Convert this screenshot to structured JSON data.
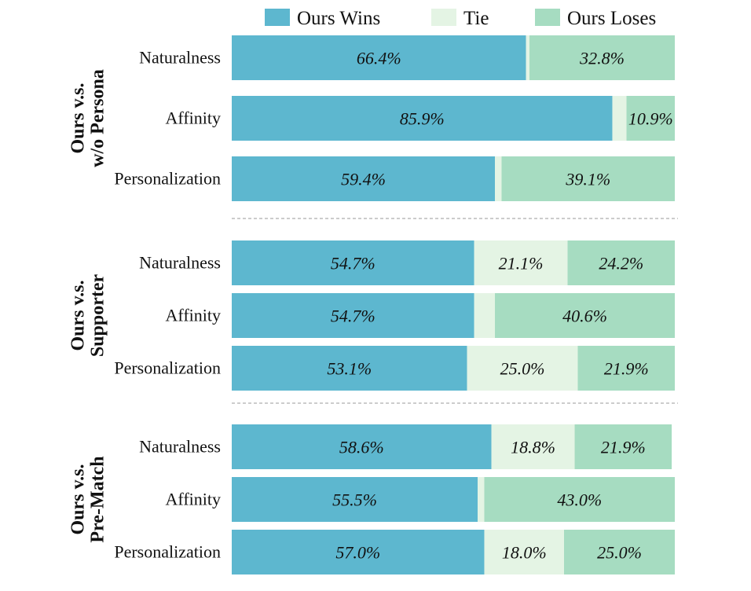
{
  "chart_data": {
    "type": "bar",
    "orientation": "horizontal",
    "stacked": true,
    "legend_position": "top",
    "xlim": [
      0,
      100
    ],
    "series": [
      {
        "name": "Ours Wins",
        "color": "#5db7cf"
      },
      {
        "name": "Tie",
        "color": "#e4f4e4"
      },
      {
        "name": "Ours Loses",
        "color": "#a6dcc1"
      }
    ],
    "groups": [
      {
        "label_lines": [
          "Ours v.s.",
          "w/o Persona"
        ],
        "rows": [
          {
            "category": "Naturalness",
            "values": [
              66.4,
              0.8,
              32.8
            ],
            "labels": [
              "66.4%",
              "",
              "32.8%"
            ]
          },
          {
            "category": "Affinity",
            "values": [
              85.9,
              3.2,
              10.9
            ],
            "labels": [
              "85.9%",
              "",
              "10.9%"
            ]
          },
          {
            "category": "Personalization",
            "values": [
              59.4,
              1.5,
              39.1
            ],
            "labels": [
              "59.4%",
              "",
              "39.1%"
            ]
          }
        ]
      },
      {
        "label_lines": [
          "Ours v.s.",
          "Supporter"
        ],
        "rows": [
          {
            "category": "Naturalness",
            "values": [
              54.7,
              21.1,
              24.2
            ],
            "labels": [
              "54.7%",
              "21.1%",
              "24.2%"
            ]
          },
          {
            "category": "Affinity",
            "values": [
              54.7,
              4.7,
              40.6
            ],
            "labels": [
              "54.7%",
              "",
              "40.6%"
            ]
          },
          {
            "category": "Personalization",
            "values": [
              53.1,
              25.0,
              21.9
            ],
            "labels": [
              "53.1%",
              "25.0%",
              "21.9%"
            ]
          }
        ]
      },
      {
        "label_lines": [
          "Ours v.s.",
          "Pre-Match"
        ],
        "rows": [
          {
            "category": "Naturalness",
            "values": [
              58.6,
              18.8,
              21.9
            ],
            "labels": [
              "58.6%",
              "18.8%",
              "21.9%"
            ]
          },
          {
            "category": "Affinity",
            "values": [
              55.5,
              1.5,
              43.0
            ],
            "labels": [
              "55.5%",
              "",
              "43.0%"
            ]
          },
          {
            "category": "Personalization",
            "values": [
              57.0,
              18.0,
              25.0
            ],
            "labels": [
              "57.0%",
              "18.0%",
              "25.0%"
            ]
          }
        ]
      }
    ]
  }
}
